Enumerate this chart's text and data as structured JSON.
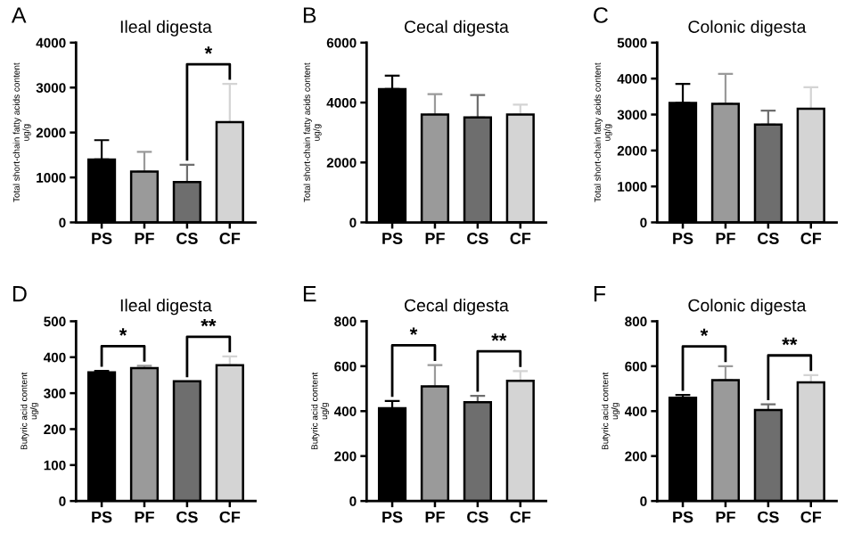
{
  "chart_data": [
    {
      "type": "bar",
      "title": "Ileal digesta",
      "ylabel": "Total short-chain fatty acids content\nug/g",
      "categories": [
        "PS",
        "PF",
        "CS",
        "CF"
      ],
      "values": [
        1400,
        1130,
        900,
        2230
      ],
      "colors": [
        "#000000",
        "#9a9a9a",
        "#6e6e6e",
        "#d4d4d4"
      ],
      "errors": [
        [
          1400,
          1830
        ],
        [
          1130,
          1570
        ],
        [
          900,
          1280
        ],
        [
          2230,
          3080
        ]
      ],
      "ylim": [
        0,
        4000
      ],
      "yticks": [
        0,
        1000,
        2000,
        3000,
        4000
      ],
      "annotations": [
        "A",
        "*"
      ]
    },
    {
      "type": "bar",
      "title": "Cecal digesta",
      "ylabel": "Total short-chain fatty acids content\nug/g",
      "categories": [
        "PS",
        "PF",
        "CS",
        "CF"
      ],
      "values": [
        4450,
        3600,
        3500,
        3600
      ],
      "colors": [
        "#000000",
        "#9a9a9a",
        "#6e6e6e",
        "#d4d4d4"
      ],
      "errors": [
        [
          4450,
          4900
        ],
        [
          3600,
          4280
        ],
        [
          3500,
          4250
        ],
        [
          3600,
          3930
        ]
      ],
      "ylim": [
        0,
        6000
      ],
      "yticks": [
        0,
        2000,
        4000,
        6000
      ],
      "annotations": [
        "B"
      ]
    },
    {
      "type": "bar",
      "title": "Colonic digesta",
      "ylabel": "Total short-chain fatty acids content\nug/g",
      "categories": [
        "PS",
        "PF",
        "CS",
        "CF"
      ],
      "values": [
        3320,
        3300,
        2720,
        3160
      ],
      "colors": [
        "#000000",
        "#9a9a9a",
        "#6e6e6e",
        "#d4d4d4"
      ],
      "errors": [
        [
          3320,
          3850
        ],
        [
          3300,
          4130
        ],
        [
          2720,
          3110
        ],
        [
          3160,
          3760
        ]
      ],
      "ylim": [
        0,
        5000
      ],
      "yticks": [
        0,
        1000,
        2000,
        3000,
        4000,
        5000
      ],
      "annotations": [
        "C"
      ]
    },
    {
      "type": "bar",
      "title": "Ileal digesta",
      "ylabel": "Butyric acid content\nug/g",
      "categories": [
        "PS",
        "PF",
        "CS",
        "CF"
      ],
      "values": [
        358,
        370,
        333,
        378
      ],
      "colors": [
        "#000000",
        "#9a9a9a",
        "#6e6e6e",
        "#d4d4d4"
      ],
      "errors": [
        [
          358,
          362
        ],
        [
          370,
          376
        ],
        null,
        [
          378,
          402
        ]
      ],
      "ylim": [
        0,
        500
      ],
      "yticks": [
        0,
        100,
        200,
        300,
        400,
        500
      ],
      "annotations": [
        "D",
        "*",
        "**"
      ]
    },
    {
      "type": "bar",
      "title": "Cecal digesta",
      "ylabel": "Butyric acid content\nug/g",
      "categories": [
        "PS",
        "PF",
        "CS",
        "CF"
      ],
      "values": [
        413,
        510,
        440,
        535
      ],
      "colors": [
        "#000000",
        "#9a9a9a",
        "#6e6e6e",
        "#d4d4d4"
      ],
      "errors": [
        [
          413,
          445
        ],
        [
          510,
          605
        ],
        [
          440,
          468
        ],
        [
          535,
          578
        ]
      ],
      "ylim": [
        0,
        800
      ],
      "yticks": [
        0,
        200,
        400,
        600,
        800
      ],
      "annotations": [
        "E",
        "*",
        "**"
      ]
    },
    {
      "type": "bar",
      "title": "Colonic digesta",
      "ylabel": "Butyric acid content\nug/g",
      "categories": [
        "PS",
        "PF",
        "CS",
        "CF"
      ],
      "values": [
        460,
        538,
        405,
        528
      ],
      "colors": [
        "#000000",
        "#9a9a9a",
        "#6e6e6e",
        "#d4d4d4"
      ],
      "errors": [
        [
          460,
          472
        ],
        [
          538,
          600
        ],
        [
          405,
          430
        ],
        [
          528,
          560
        ]
      ],
      "ylim": [
        0,
        800
      ],
      "yticks": [
        0,
        200,
        400,
        600,
        800
      ],
      "annotations": [
        "F",
        "*",
        "**"
      ]
    }
  ]
}
